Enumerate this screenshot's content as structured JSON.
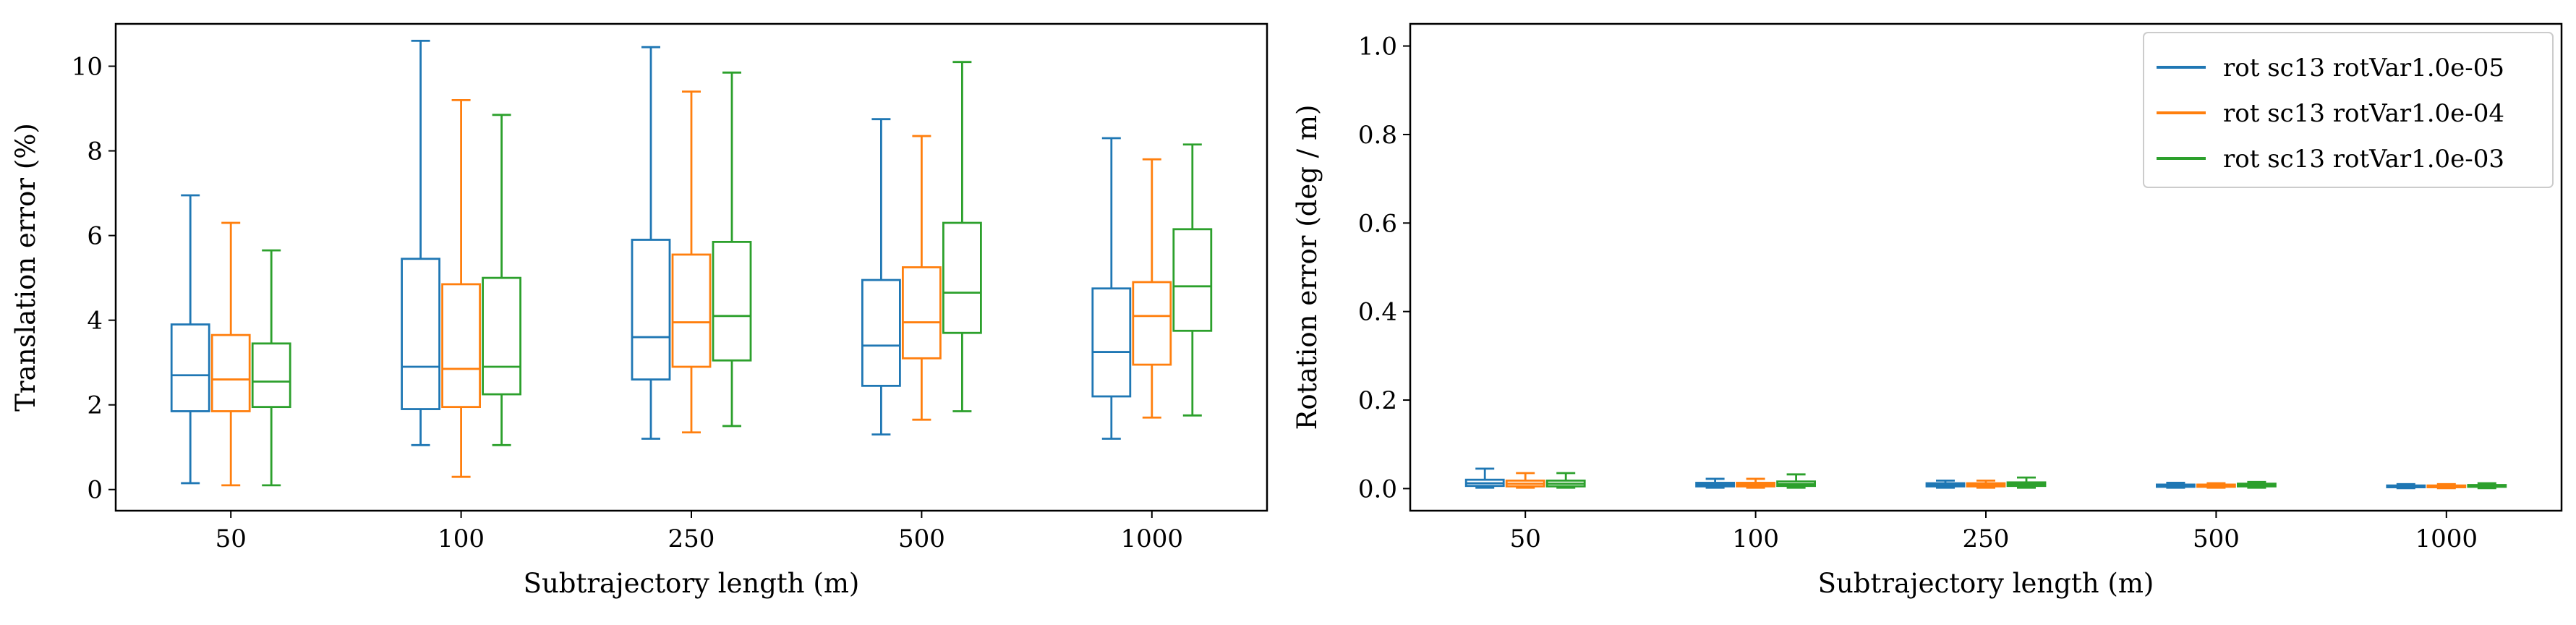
{
  "chart_data": [
    {
      "type": "box",
      "xlabel": "Subtrajectory length (m)",
      "ylabel": "Translation error (%)",
      "categories": [
        "50",
        "100",
        "250",
        "500",
        "1000"
      ],
      "ylim": [
        -0.5,
        11.0
      ],
      "yticks": [
        0,
        2,
        4,
        6,
        8,
        10
      ],
      "legend": null,
      "series": [
        {
          "name": "rot sc13 rotVar1.0e-05",
          "color": "#1f77b4",
          "boxes": [
            {
              "whislo": 0.15,
              "q1": 1.85,
              "med": 2.7,
              "q3": 3.9,
              "whishi": 6.95
            },
            {
              "whislo": 1.05,
              "q1": 1.9,
              "med": 2.9,
              "q3": 5.45,
              "whishi": 10.6
            },
            {
              "whislo": 1.2,
              "q1": 2.6,
              "med": 3.6,
              "q3": 5.9,
              "whishi": 10.45
            },
            {
              "whislo": 1.3,
              "q1": 2.45,
              "med": 3.4,
              "q3": 4.95,
              "whishi": 8.75
            },
            {
              "whislo": 1.2,
              "q1": 2.2,
              "med": 3.25,
              "q3": 4.75,
              "whishi": 8.3
            }
          ]
        },
        {
          "name": "rot sc13 rotVar1.0e-04",
          "color": "#ff7f0e",
          "boxes": [
            {
              "whislo": 0.1,
              "q1": 1.85,
              "med": 2.6,
              "q3": 3.65,
              "whishi": 6.3
            },
            {
              "whislo": 0.3,
              "q1": 1.95,
              "med": 2.85,
              "q3": 4.85,
              "whishi": 9.2
            },
            {
              "whislo": 1.35,
              "q1": 2.9,
              "med": 3.95,
              "q3": 5.55,
              "whishi": 9.4
            },
            {
              "whislo": 1.65,
              "q1": 3.1,
              "med": 3.95,
              "q3": 5.25,
              "whishi": 8.35
            },
            {
              "whislo": 1.7,
              "q1": 2.95,
              "med": 4.1,
              "q3": 4.9,
              "whishi": 7.8
            }
          ]
        },
        {
          "name": "rot sc13 rotVar1.0e-03",
          "color": "#2ca02c",
          "boxes": [
            {
              "whislo": 0.1,
              "q1": 1.95,
              "med": 2.55,
              "q3": 3.45,
              "whishi": 5.65
            },
            {
              "whislo": 1.05,
              "q1": 2.25,
              "med": 2.9,
              "q3": 5.0,
              "whishi": 8.85
            },
            {
              "whislo": 1.5,
              "q1": 3.05,
              "med": 4.1,
              "q3": 5.85,
              "whishi": 9.85
            },
            {
              "whislo": 1.85,
              "q1": 3.7,
              "med": 4.65,
              "q3": 6.3,
              "whishi": 10.1
            },
            {
              "whislo": 1.75,
              "q1": 3.75,
              "med": 4.8,
              "q3": 6.15,
              "whishi": 8.15
            }
          ]
        }
      ]
    },
    {
      "type": "box",
      "xlabel": "Subtrajectory length (m)",
      "ylabel": "Rotation error (deg / m)",
      "categories": [
        "50",
        "100",
        "250",
        "500",
        "1000"
      ],
      "ylim": [
        -0.05,
        1.05
      ],
      "yticks": [
        "0.0",
        "0.2",
        "0.4",
        "0.6",
        "0.8",
        "1.0"
      ],
      "legend": "top-right",
      "series": [
        {
          "name": "rot sc13 rotVar1.0e-05",
          "color": "#1f77b4",
          "boxes": [
            {
              "whislo": 0.002,
              "q1": 0.006,
              "med": 0.012,
              "q3": 0.02,
              "whishi": 0.045
            },
            {
              "whislo": 0.002,
              "q1": 0.005,
              "med": 0.009,
              "q3": 0.013,
              "whishi": 0.022
            },
            {
              "whislo": 0.002,
              "q1": 0.005,
              "med": 0.008,
              "q3": 0.012,
              "whishi": 0.018
            },
            {
              "whislo": 0.002,
              "q1": 0.004,
              "med": 0.006,
              "q3": 0.009,
              "whishi": 0.013
            },
            {
              "whislo": 0.001,
              "q1": 0.003,
              "med": 0.005,
              "q3": 0.007,
              "whishi": 0.01
            }
          ]
        },
        {
          "name": "rot sc13 rotVar1.0e-04",
          "color": "#ff7f0e",
          "boxes": [
            {
              "whislo": 0.002,
              "q1": 0.005,
              "med": 0.011,
              "q3": 0.018,
              "whishi": 0.035
            },
            {
              "whislo": 0.002,
              "q1": 0.005,
              "med": 0.009,
              "q3": 0.013,
              "whishi": 0.022
            },
            {
              "whislo": 0.002,
              "q1": 0.005,
              "med": 0.008,
              "q3": 0.012,
              "whishi": 0.018
            },
            {
              "whislo": 0.002,
              "q1": 0.004,
              "med": 0.006,
              "q3": 0.009,
              "whishi": 0.012
            },
            {
              "whislo": 0.001,
              "q1": 0.003,
              "med": 0.005,
              "q3": 0.007,
              "whishi": 0.01
            }
          ]
        },
        {
          "name": "rot sc13 rotVar1.0e-03",
          "color": "#2ca02c",
          "boxes": [
            {
              "whislo": 0.002,
              "q1": 0.005,
              "med": 0.011,
              "q3": 0.018,
              "whishi": 0.035
            },
            {
              "whislo": 0.002,
              "q1": 0.006,
              "med": 0.01,
              "q3": 0.016,
              "whishi": 0.032
            },
            {
              "whislo": 0.002,
              "q1": 0.006,
              "med": 0.01,
              "q3": 0.014,
              "whishi": 0.025
            },
            {
              "whislo": 0.002,
              "q1": 0.005,
              "med": 0.008,
              "q3": 0.011,
              "whishi": 0.015
            },
            {
              "whislo": 0.001,
              "q1": 0.004,
              "med": 0.006,
              "q3": 0.008,
              "whishi": 0.012
            }
          ]
        }
      ]
    }
  ]
}
